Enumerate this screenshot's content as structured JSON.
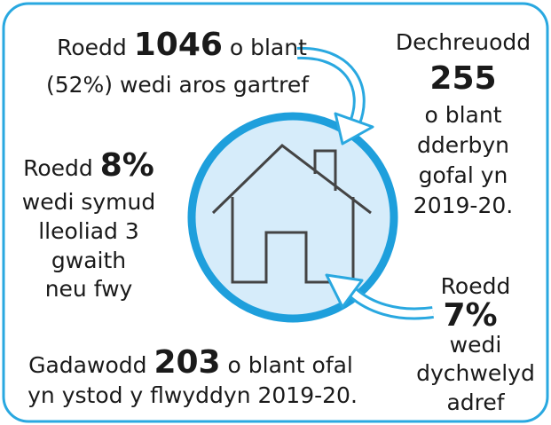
{
  "top_left": {
    "before": "Roedd",
    "number": "1046",
    "after": "o blant",
    "line2": "(52%) wedi aros gartref"
  },
  "top_right": {
    "lead": "Dechreuodd",
    "number": "255",
    "lines": [
      "o blant",
      "dderbyn",
      "gofal yn",
      "2019-20."
    ]
  },
  "left": {
    "before": "Roedd",
    "number": "8%",
    "lines": [
      "wedi symud",
      "lleoliad 3",
      "gwaith",
      "neu fwy"
    ]
  },
  "bottom_left": {
    "before": "Gadawodd",
    "number": "203",
    "after": "o blant ofal",
    "line2": "yn ystod y flwyddyn 2019-20."
  },
  "bottom_right": {
    "lead": "Roedd",
    "number": "7%",
    "lines": [
      "wedi",
      "dychwelyd",
      "adref"
    ]
  }
}
